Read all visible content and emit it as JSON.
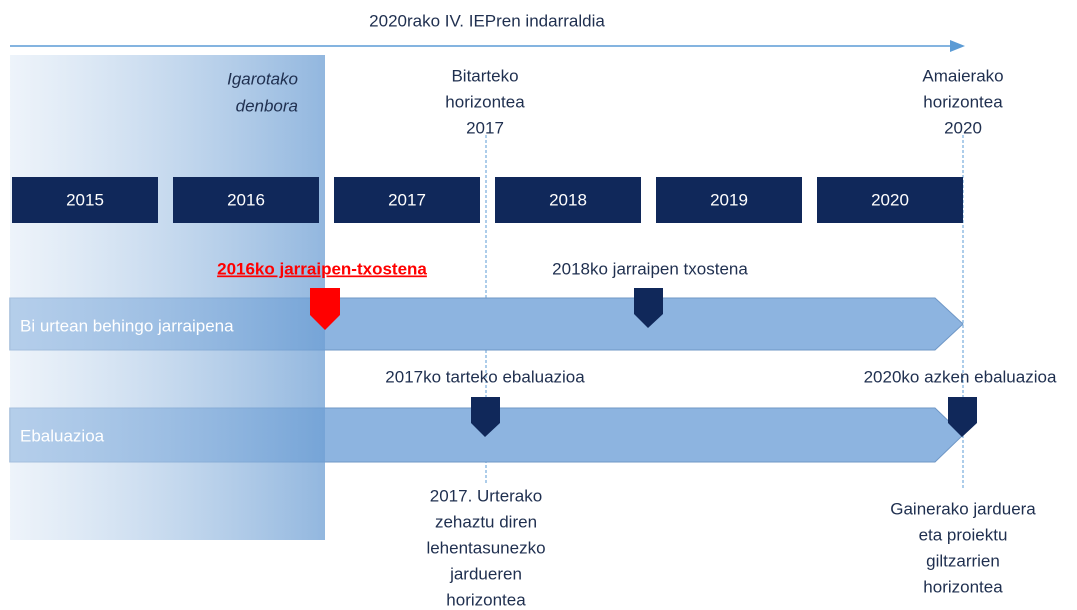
{
  "title": "2020rako IV. IEPren indarraldia",
  "past_label": [
    "Igarotako",
    "denbora"
  ],
  "horizons": [
    {
      "lines": [
        "Bitarteko",
        "horizontea",
        "2017"
      ]
    },
    {
      "lines": [
        "Amaierako",
        "horizontea",
        "2020"
      ]
    }
  ],
  "years": [
    "2015",
    "2016",
    "2017",
    "2018",
    "2019",
    "2020"
  ],
  "tracks": [
    "Bi urtean behingo jarraipena",
    "Ebaluazioa"
  ],
  "markers": [
    {
      "label": "2016ko jarraipen-txostena"
    },
    {
      "label": "2018ko jarraipen txostena"
    },
    {
      "label": "2017ko tarteko ebaluazioa"
    },
    {
      "label": "2020ko azken ebaluazioa"
    }
  ],
  "notes": [
    {
      "lines": [
        "2017. Urterako",
        "zehaztu diren",
        "lehentasunezko",
        "jardueren",
        "horizontea"
      ]
    },
    {
      "lines": [
        "Gainerako jarduera",
        "eta proiektu",
        "giltzarrien",
        "horizontea"
      ]
    }
  ]
}
